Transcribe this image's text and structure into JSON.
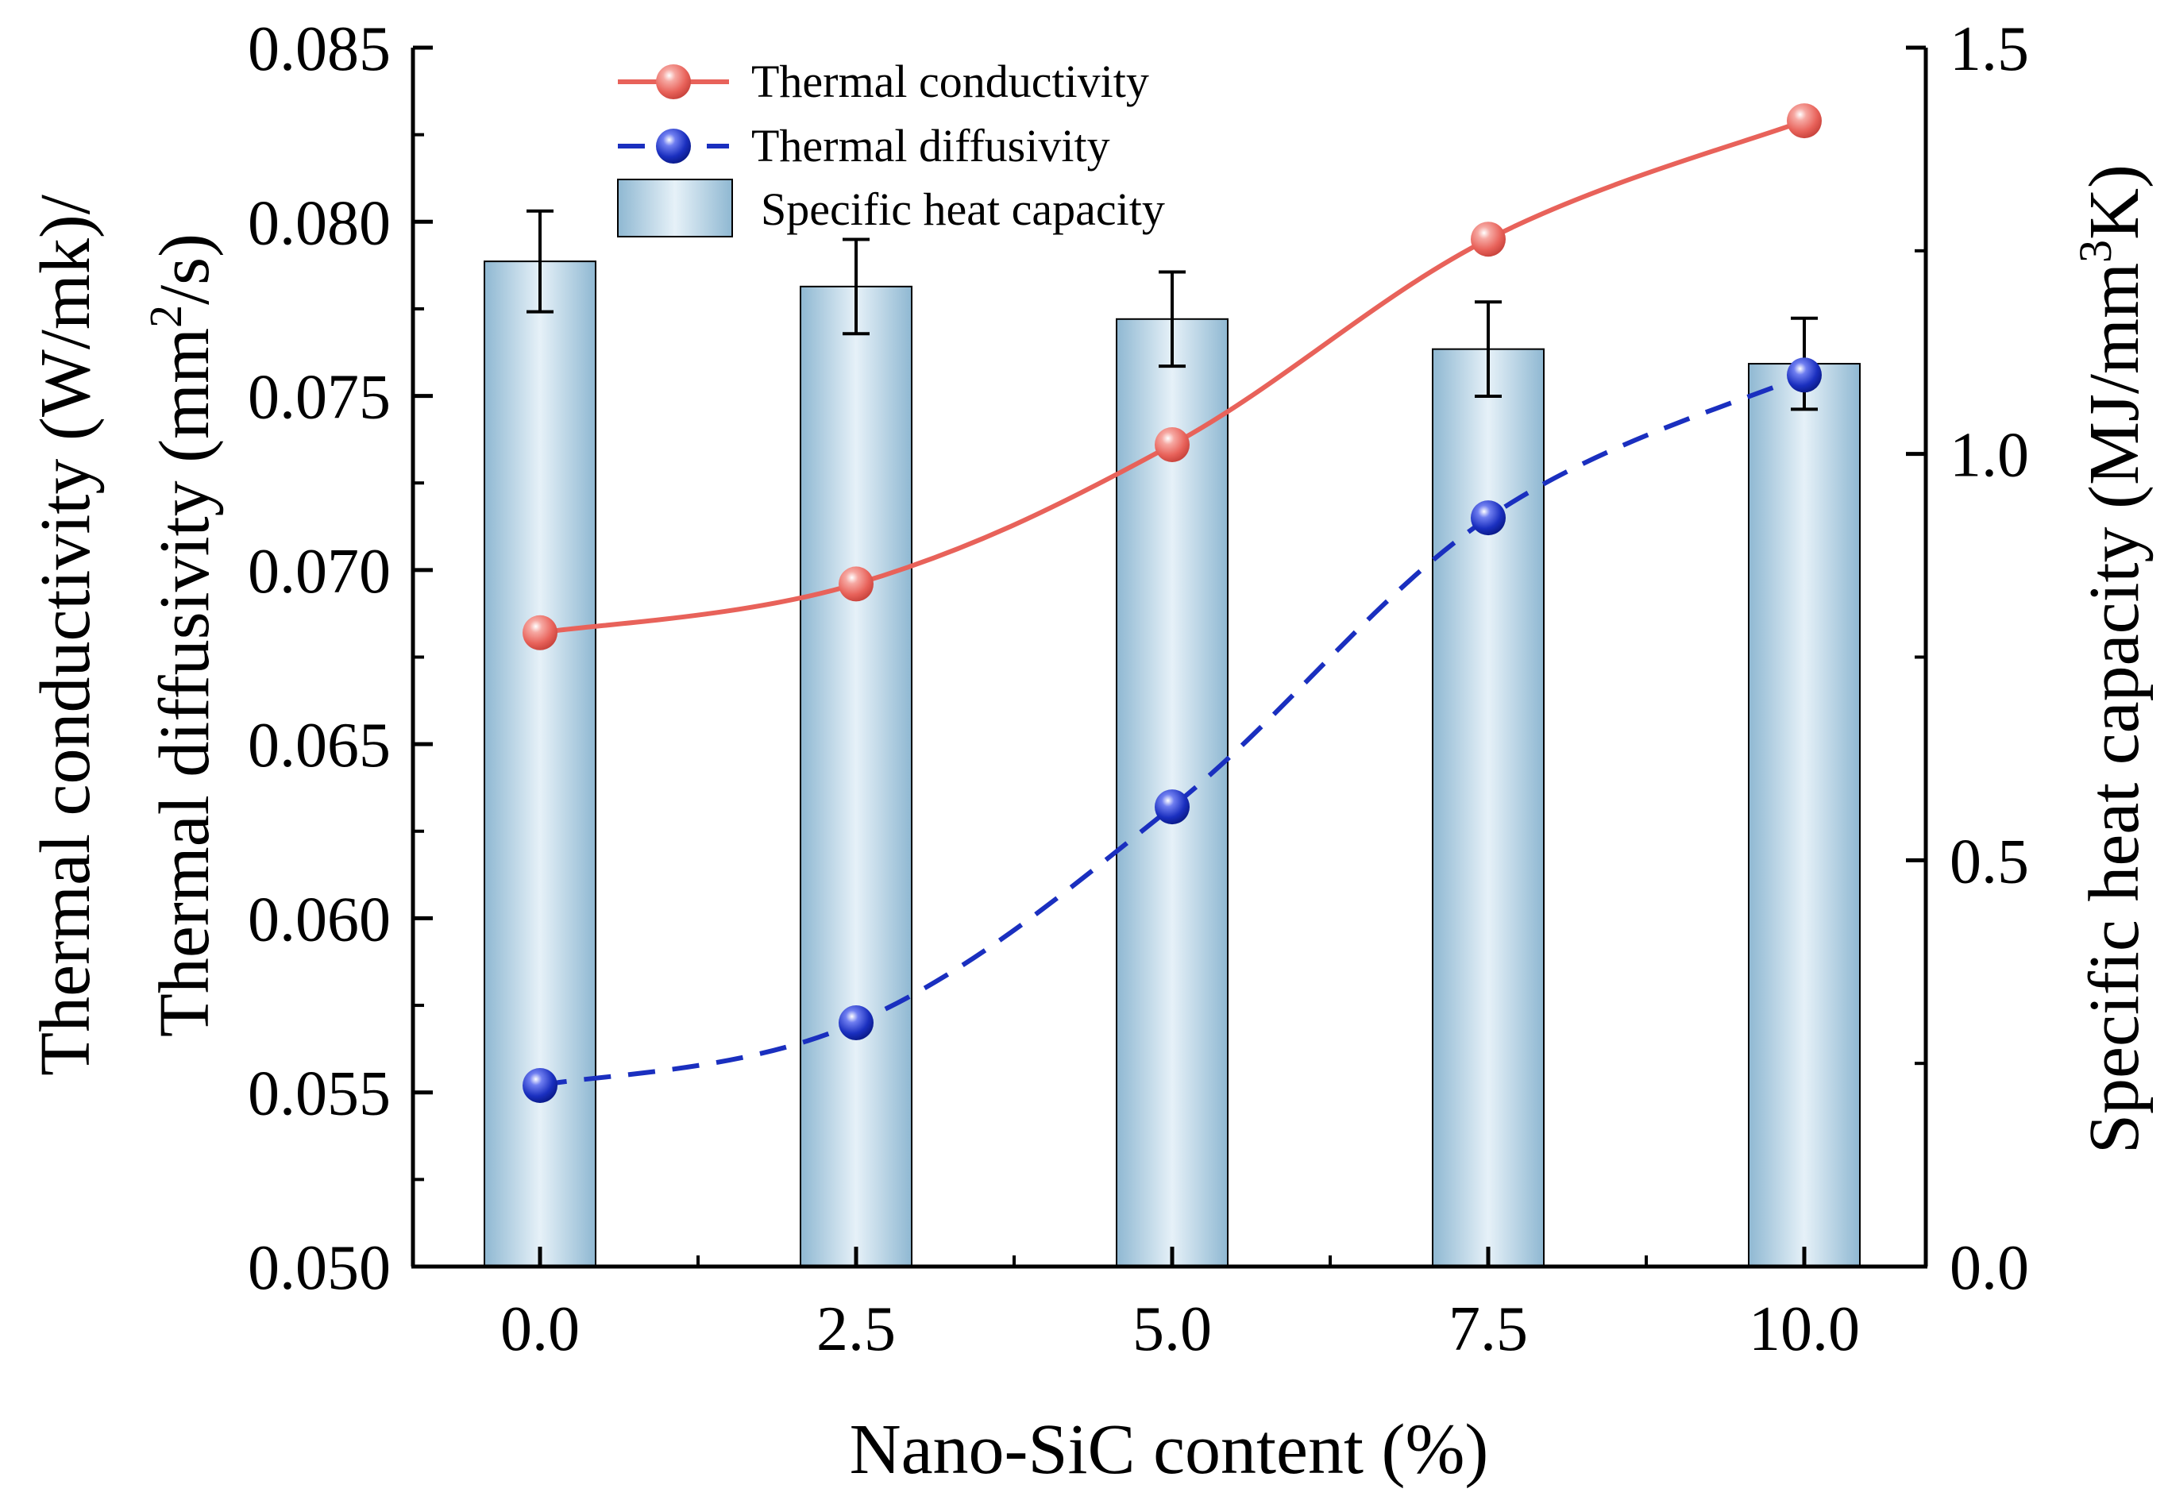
{
  "chart_data": {
    "type": "bar+line",
    "title": "",
    "xlabel": "Nano-SiC content (%)",
    "ylabel_left_line1": "Thermal conductivity (W/mk)/",
    "ylabel_left_line2_pre": "Thermal diffusivity (mm",
    "ylabel_left_line2_sup": "2",
    "ylabel_left_line2_post": "/s)",
    "ylabel_right_pre": "Specific heat capacity (MJ/mm",
    "ylabel_right_sup": "3",
    "ylabel_right_post": "K)",
    "categories": [
      "0.0",
      "2.5",
      "5.0",
      "7.5",
      "10.0"
    ],
    "ylim_left": [
      0.05,
      0.085
    ],
    "ylim_right": [
      0.0,
      1.5
    ],
    "yticks_left": [
      "0.050",
      "0.055",
      "0.060",
      "0.065",
      "0.070",
      "0.075",
      "0.080",
      "0.085"
    ],
    "yticks_right": [
      "0.0",
      "0.5",
      "1.0",
      "1.5"
    ],
    "series": [
      {
        "name": "Thermal conductivity",
        "type": "line",
        "axis": "left",
        "style": "solid",
        "color": "#e8625a",
        "values": [
          0.0682,
          0.0696,
          0.0736,
          0.0795,
          0.0829
        ]
      },
      {
        "name": "Thermal diffusivity",
        "type": "line",
        "axis": "left",
        "style": "dashed",
        "color": "#1a2fbf",
        "values": [
          0.0552,
          0.057,
          0.0632,
          0.0715,
          0.0756
        ]
      },
      {
        "name": "Specific heat capacity",
        "type": "bar",
        "axis": "right",
        "color": "#9cc2d8",
        "values": [
          1.237,
          1.206,
          1.166,
          1.129,
          1.111
        ],
        "error": [
          0.062,
          0.058,
          0.058,
          0.058,
          0.056
        ]
      }
    ],
    "legend_position": "top-center",
    "grid": false
  }
}
